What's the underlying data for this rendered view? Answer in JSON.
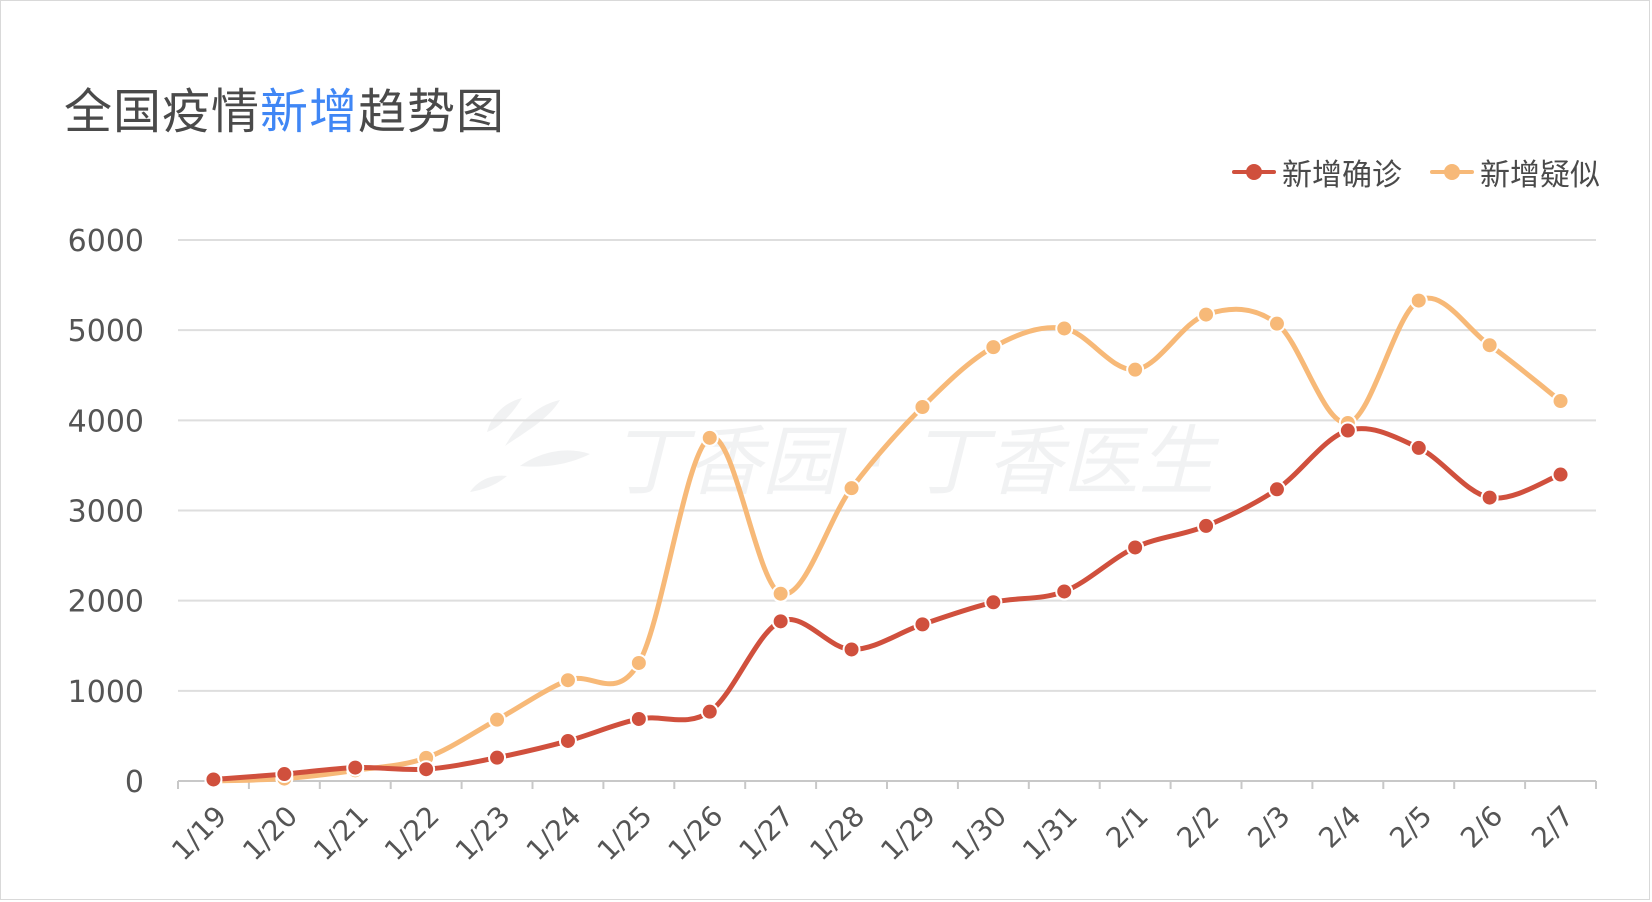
{
  "title": {
    "pre": "全国疫情",
    "highlight": "新增",
    "post": "趋势图"
  },
  "watermark": "丁香园 · 丁香医生",
  "colors": {
    "confirmed": "#d0503d",
    "suspected": "#f7b978",
    "title_highlight": "#3f86f5",
    "grid": "#dedede",
    "text": "#4a4a4a"
  },
  "chart_data": {
    "type": "line",
    "categories": [
      "1/19",
      "1/20",
      "1/21",
      "1/22",
      "1/23",
      "1/24",
      "1/25",
      "1/26",
      "1/27",
      "1/28",
      "1/29",
      "1/30",
      "1/31",
      "2/1",
      "2/2",
      "2/3",
      "2/4",
      "2/5",
      "2/6",
      "2/7"
    ],
    "series": [
      {
        "name": "新增确诊",
        "color": "#d0503d",
        "values": [
          17,
          77,
          149,
          131,
          259,
          444,
          688,
          769,
          1771,
          1459,
          1737,
          1982,
          2102,
          2590,
          2829,
          3235,
          3887,
          3694,
          3143,
          3399
        ]
      },
      {
        "name": "新增疑似",
        "color": "#f7b978",
        "values": [
          0,
          27,
          118,
          257,
          680,
          1118,
          1309,
          3806,
          2077,
          3248,
          4148,
          4812,
          5019,
          4562,
          5173,
          5072,
          3971,
          5328,
          4833,
          4214
        ]
      }
    ],
    "ylim": [
      0,
      6000
    ],
    "yticks": [
      0,
      1000,
      2000,
      3000,
      4000,
      5000,
      6000
    ],
    "grid": true,
    "smooth": true,
    "legend_position": "top-right"
  }
}
